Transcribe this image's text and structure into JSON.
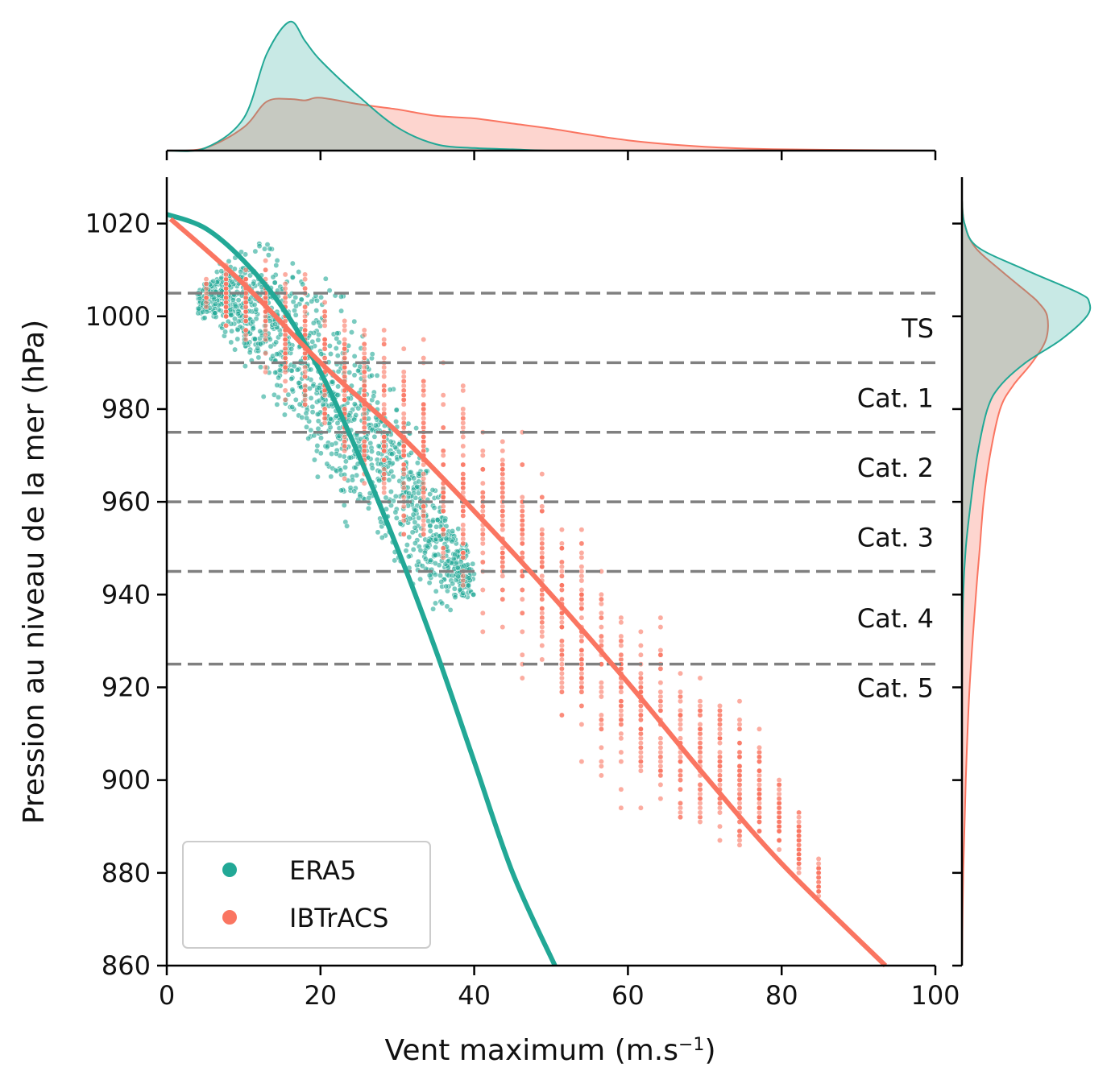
{
  "chart_data": {
    "type": "scatter",
    "title": "",
    "xlabel": "Vent maximum (m.s",
    "xlabel_sup": "−1",
    "xlabel_end": ")",
    "ylabel": "Pression au niveau de la mer (hPa)",
    "xlim": [
      0,
      100
    ],
    "ylim": [
      860,
      1030
    ],
    "xticks": [
      0,
      20,
      40,
      60,
      80,
      100
    ],
    "xtick_labels": [
      "0",
      "20",
      "40",
      "60",
      "80",
      "100"
    ],
    "yticks": [
      860,
      880,
      900,
      920,
      940,
      960,
      980,
      1000,
      1020
    ],
    "ytick_labels": [
      "860",
      "880",
      "900",
      "920",
      "940",
      "960",
      "980",
      "1000",
      "1020"
    ],
    "grid": false,
    "legend_placement": "lower-left",
    "colors": {
      "ERA5": "#22a896",
      "IBTrACS": "#fa7561",
      "category_lines": "#808080"
    },
    "category_thresholds": [
      {
        "pressure": 1005,
        "label": ""
      },
      {
        "pressure": 990,
        "label": "TS"
      },
      {
        "pressure": 975,
        "label": "Cat. 1"
      },
      {
        "pressure": 960,
        "label": "Cat. 2"
      },
      {
        "pressure": 945,
        "label": "Cat. 3"
      },
      {
        "pressure": 925,
        "label": "Cat. 4"
      }
    ],
    "extra_category_label": {
      "label": "Cat. 5",
      "pressure": 920
    },
    "series": [
      {
        "name": "ERA5",
        "fit_curve": {
          "x": [
            0,
            5,
            10,
            15,
            20,
            25,
            30,
            35,
            40,
            45,
            50.5
          ],
          "y": [
            1022,
            1019,
            1012,
            1002,
            988,
            970,
            950,
            928,
            904,
            880,
            860
          ]
        },
        "scatter_cloud": {
          "x": [
            4,
            6,
            8,
            10,
            12,
            14,
            16,
            18,
            20,
            22,
            24,
            26,
            28,
            30,
            32,
            34,
            36,
            38,
            40
          ],
          "y_min": [
            999,
            996,
            992,
            985,
            980,
            975,
            968,
            962,
            957,
            953,
            950,
            947,
            944,
            941,
            938,
            935,
            933,
            933,
            935
          ],
          "y_max": [
            1007,
            1012,
            1016,
            1019,
            1021,
            1020,
            1018,
            1016,
            1013,
            1010,
            1006,
            1001,
            995,
            989,
            983,
            975,
            967,
            958,
            950
          ]
        }
      },
      {
        "name": "IBTrACS",
        "fit_curve": {
          "x": [
            0.5,
            10,
            20,
            30,
            40,
            50,
            60,
            70,
            80,
            93.5
          ],
          "y": [
            1021,
            1007,
            990,
            975,
            958,
            940,
            921,
            901,
            882,
            860
          ]
        },
        "scatter_cloud": {
          "x": [
            6,
            10,
            14,
            18,
            22,
            26,
            30,
            34,
            38,
            42,
            46,
            50,
            54,
            58,
            62,
            66,
            70,
            74,
            78,
            82,
            85
          ],
          "y_min": [
            998,
            990,
            982,
            972,
            962,
            954,
            946,
            940,
            932,
            925,
            918,
            910,
            900,
            892,
            886,
            884,
            882,
            880,
            882,
            878,
            872
          ],
          "y_max": [
            1012,
            1015,
            1016,
            1014,
            1010,
            1006,
            1002,
            998,
            994,
            988,
            980,
            970,
            960,
            950,
            942,
            936,
            930,
            922,
            912,
            896,
            885
          ]
        }
      }
    ],
    "marginal_x": {
      "x": [
        0,
        5,
        10,
        13,
        16,
        18,
        20,
        25,
        30,
        35,
        40,
        45,
        50,
        60,
        70,
        80,
        100
      ],
      "ERA5": [
        0,
        0.02,
        0.25,
        0.75,
        1.0,
        0.85,
        0.7,
        0.42,
        0.18,
        0.05,
        0.02,
        0.01,
        0,
        0,
        0,
        0,
        0
      ],
      "IBTrACS": [
        0,
        0.02,
        0.18,
        0.38,
        0.4,
        0.39,
        0.41,
        0.36,
        0.32,
        0.27,
        0.25,
        0.21,
        0.17,
        0.08,
        0.03,
        0.01,
        0
      ]
    },
    "marginal_y": {
      "y": [
        860,
        880,
        900,
        920,
        940,
        950,
        960,
        970,
        980,
        985,
        990,
        995,
        1000,
        1003,
        1005,
        1010,
        1015,
        1020,
        1025
      ],
      "ERA5": [
        0,
        0,
        0,
        0,
        0.01,
        0.03,
        0.07,
        0.12,
        0.2,
        0.3,
        0.5,
        0.78,
        0.98,
        1.0,
        0.92,
        0.5,
        0.12,
        0.02,
        0
      ],
      "IBTrACS": [
        0,
        0.01,
        0.03,
        0.06,
        0.11,
        0.14,
        0.17,
        0.22,
        0.3,
        0.4,
        0.55,
        0.66,
        0.67,
        0.6,
        0.52,
        0.3,
        0.1,
        0.02,
        0
      ]
    }
  },
  "legend": {
    "items": [
      {
        "label": "ERA5",
        "color": "#22a896"
      },
      {
        "label": "IBTrACS",
        "color": "#fa7561"
      }
    ]
  }
}
